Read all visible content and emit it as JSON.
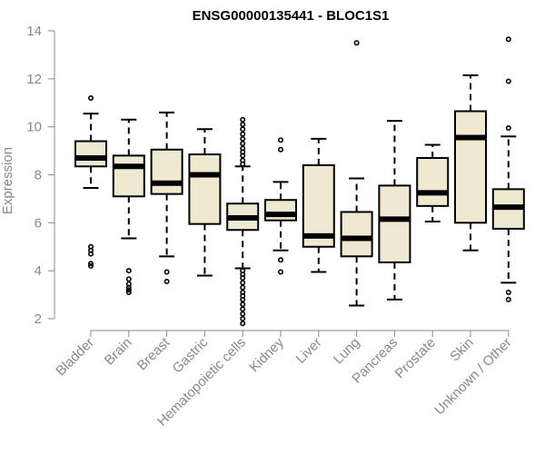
{
  "chart_data": {
    "type": "boxplot",
    "title": "ENSG00000135441 - BLOC1S1",
    "xlabel": "",
    "ylabel": "Expression",
    "ylim": [
      1.5,
      14.3
    ],
    "yticks": [
      2,
      4,
      6,
      8,
      10,
      12,
      14
    ],
    "categories": [
      "Bladder",
      "Brain",
      "Breast",
      "Gastric",
      "Hematopoietic cells",
      "Kidney",
      "Liver",
      "Lung",
      "Pancreas",
      "Prostate",
      "Skin",
      "Unknown / Other"
    ],
    "series": [
      {
        "name": "Bladder",
        "lower_whisker": 7.45,
        "q1": 8.35,
        "median": 8.7,
        "q3": 9.4,
        "upper_whisker": 10.55,
        "outliers": [
          11.2,
          5.0,
          4.85,
          4.7,
          4.3,
          4.2
        ]
      },
      {
        "name": "Brain",
        "lower_whisker": 5.35,
        "q1": 7.1,
        "median": 8.35,
        "q3": 8.8,
        "upper_whisker": 10.3,
        "outliers": [
          4.0,
          3.65,
          3.45,
          3.3,
          3.2,
          3.1
        ]
      },
      {
        "name": "Breast",
        "lower_whisker": 4.6,
        "q1": 7.2,
        "median": 7.65,
        "q3": 9.05,
        "upper_whisker": 10.6,
        "outliers": [
          3.95,
          3.55
        ]
      },
      {
        "name": "Gastric",
        "lower_whisker": 3.8,
        "q1": 5.95,
        "median": 8.0,
        "q3": 8.85,
        "upper_whisker": 9.9,
        "outliers": []
      },
      {
        "name": "Hematopoietic cells",
        "lower_whisker": 4.1,
        "q1": 5.7,
        "median": 6.2,
        "q3": 6.8,
        "upper_whisker": 8.35,
        "outliers": [
          10.3,
          10.1,
          9.9,
          9.7,
          9.5,
          9.3,
          9.1,
          8.95,
          8.8,
          8.6,
          8.45,
          4.0,
          3.85,
          3.7,
          3.5,
          3.3,
          3.1,
          2.95,
          2.8,
          2.6,
          2.4,
          2.2,
          2.0,
          1.8
        ]
      },
      {
        "name": "Kidney",
        "lower_whisker": 4.85,
        "q1": 6.1,
        "median": 6.35,
        "q3": 6.95,
        "upper_whisker": 7.7,
        "outliers": [
          9.45,
          9.05,
          4.45,
          3.95
        ]
      },
      {
        "name": "Liver",
        "lower_whisker": 3.95,
        "q1": 5.0,
        "median": 5.45,
        "q3": 8.4,
        "upper_whisker": 9.5,
        "outliers": []
      },
      {
        "name": "Lung",
        "lower_whisker": 2.55,
        "q1": 4.6,
        "median": 5.35,
        "q3": 6.45,
        "upper_whisker": 7.85,
        "outliers": [
          13.5
        ]
      },
      {
        "name": "Pancreas",
        "lower_whisker": 2.8,
        "q1": 4.35,
        "median": 6.15,
        "q3": 7.55,
        "upper_whisker": 10.25,
        "outliers": []
      },
      {
        "name": "Prostate",
        "lower_whisker": 6.05,
        "q1": 6.7,
        "median": 7.25,
        "q3": 8.7,
        "upper_whisker": 9.25,
        "outliers": []
      },
      {
        "name": "Skin",
        "lower_whisker": 4.85,
        "q1": 6.0,
        "median": 9.55,
        "q3": 10.65,
        "upper_whisker": 12.15,
        "outliers": []
      },
      {
        "name": "Unknown / Other",
        "lower_whisker": 3.5,
        "q1": 5.75,
        "median": 6.65,
        "q3": 7.4,
        "upper_whisker": 9.6,
        "outliers": [
          13.65,
          11.9,
          9.95,
          3.1,
          2.8
        ]
      }
    ],
    "box_fill": "#efe9d2",
    "box_stroke": "#000000",
    "axis_color": "#888888",
    "grid": false,
    "legend": "none"
  }
}
